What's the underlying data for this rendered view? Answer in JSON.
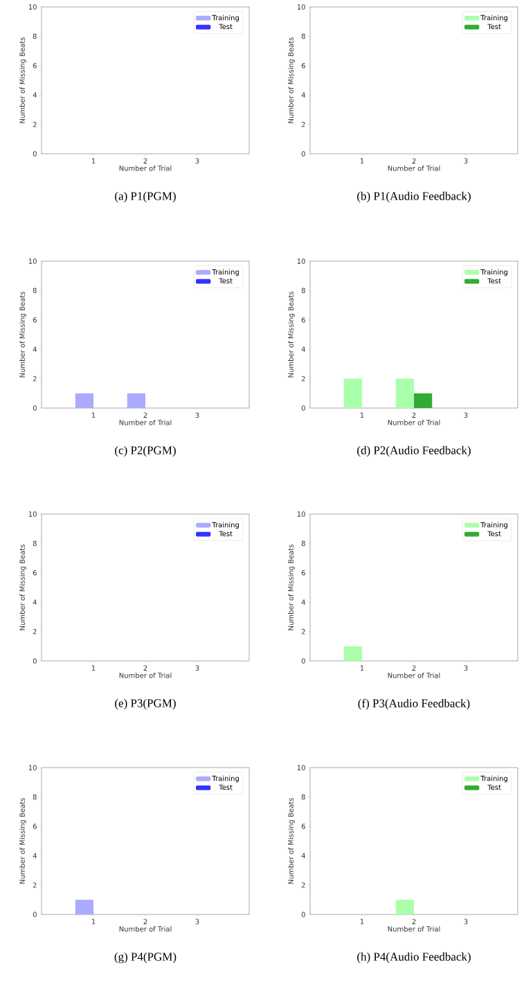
{
  "chart_data": [
    {
      "type": "bar",
      "title": "(a) P1(PGM)",
      "xlabel": "Number of Trial",
      "ylabel": "Number of Missing Beats",
      "x": [
        1,
        2,
        3
      ],
      "xlim": [
        0,
        4
      ],
      "xticks": [
        1,
        2,
        3
      ],
      "ylim": [
        0,
        10
      ],
      "yticks": [
        0,
        2,
        4,
        6,
        8,
        10
      ],
      "legend": "top right",
      "series": [
        {
          "name": "Training",
          "color": "#aaaaff",
          "values": [
            0,
            0,
            0
          ]
        },
        {
          "name": "Test",
          "color": "#3333ff",
          "values": [
            0,
            0,
            0
          ]
        }
      ]
    },
    {
      "type": "bar",
      "title": "(b) P1(Audio Feedback)",
      "xlabel": "Number of Trial",
      "ylabel": "Number of Missing Beats",
      "x": [
        1,
        2,
        3
      ],
      "xlim": [
        0,
        4
      ],
      "xticks": [
        1,
        2,
        3
      ],
      "ylim": [
        0,
        10
      ],
      "yticks": [
        0,
        2,
        4,
        6,
        8,
        10
      ],
      "legend": "top right",
      "series": [
        {
          "name": "Training",
          "color": "#aaffaa",
          "values": [
            0,
            0,
            0
          ]
        },
        {
          "name": "Test",
          "color": "#33aa33",
          "values": [
            0,
            0,
            0
          ]
        }
      ]
    },
    {
      "type": "bar",
      "title": "(c) P2(PGM)",
      "xlabel": "Number of Trial",
      "ylabel": "Number of Missing Beats",
      "x": [
        1,
        2,
        3
      ],
      "xlim": [
        0,
        4
      ],
      "xticks": [
        1,
        2,
        3
      ],
      "ylim": [
        0,
        10
      ],
      "yticks": [
        0,
        2,
        4,
        6,
        8,
        10
      ],
      "legend": "top right",
      "series": [
        {
          "name": "Training",
          "color": "#aaaaff",
          "values": [
            1,
            1,
            0
          ]
        },
        {
          "name": "Test",
          "color": "#3333ff",
          "values": [
            0,
            0,
            0
          ]
        }
      ]
    },
    {
      "type": "bar",
      "title": "(d) P2(Audio Feedback)",
      "xlabel": "Number of Trial",
      "ylabel": "Number of Missing Beats",
      "x": [
        1,
        2,
        3
      ],
      "xlim": [
        0,
        4
      ],
      "xticks": [
        1,
        2,
        3
      ],
      "ylim": [
        0,
        10
      ],
      "yticks": [
        0,
        2,
        4,
        6,
        8,
        10
      ],
      "legend": "top right",
      "series": [
        {
          "name": "Training",
          "color": "#aaffaa",
          "values": [
            2,
            2,
            0
          ]
        },
        {
          "name": "Test",
          "color": "#33aa33",
          "values": [
            0,
            1,
            0
          ]
        }
      ]
    },
    {
      "type": "bar",
      "title": "(e) P3(PGM)",
      "xlabel": "Number of Trial",
      "ylabel": "Number of Missing Beats",
      "x": [
        1,
        2,
        3
      ],
      "xlim": [
        0,
        4
      ],
      "xticks": [
        1,
        2,
        3
      ],
      "ylim": [
        0,
        10
      ],
      "yticks": [
        0,
        2,
        4,
        6,
        8,
        10
      ],
      "legend": "top right",
      "series": [
        {
          "name": "Training",
          "color": "#aaaaff",
          "values": [
            0,
            0,
            0
          ]
        },
        {
          "name": "Test",
          "color": "#3333ff",
          "values": [
            0,
            0,
            0
          ]
        }
      ]
    },
    {
      "type": "bar",
      "title": "(f) P3(Audio Feedback)",
      "xlabel": "Number of Trial",
      "ylabel": "Number of Missing Beats",
      "x": [
        1,
        2,
        3
      ],
      "xlim": [
        0,
        4
      ],
      "xticks": [
        1,
        2,
        3
      ],
      "ylim": [
        0,
        10
      ],
      "yticks": [
        0,
        2,
        4,
        6,
        8,
        10
      ],
      "legend": "top right",
      "series": [
        {
          "name": "Training",
          "color": "#aaffaa",
          "values": [
            1,
            0,
            0
          ]
        },
        {
          "name": "Test",
          "color": "#33aa33",
          "values": [
            0,
            0,
            0
          ]
        }
      ]
    },
    {
      "type": "bar",
      "title": "(g) P4(PGM)",
      "xlabel": "Number of Trial",
      "ylabel": "Number of Missing Beats",
      "x": [
        1,
        2,
        3
      ],
      "xlim": [
        0,
        4
      ],
      "xticks": [
        1,
        2,
        3
      ],
      "ylim": [
        0,
        10
      ],
      "yticks": [
        0,
        2,
        4,
        6,
        8,
        10
      ],
      "legend": "top right",
      "series": [
        {
          "name": "Training",
          "color": "#aaaaff",
          "values": [
            1,
            0,
            0
          ]
        },
        {
          "name": "Test",
          "color": "#3333ff",
          "values": [
            0,
            0,
            0
          ]
        }
      ]
    },
    {
      "type": "bar",
      "title": "(h) P4(Audio Feedback)",
      "xlabel": "Number of Trial",
      "ylabel": "Number of Missing Beats",
      "x": [
        1,
        2,
        3
      ],
      "xlim": [
        0,
        4
      ],
      "xticks": [
        1,
        2,
        3
      ],
      "ylim": [
        0,
        10
      ],
      "yticks": [
        0,
        2,
        4,
        6,
        8,
        10
      ],
      "legend": "top right",
      "series": [
        {
          "name": "Training",
          "color": "#aaffaa",
          "values": [
            0,
            1,
            0
          ]
        },
        {
          "name": "Test",
          "color": "#33aa33",
          "values": [
            0,
            0,
            0
          ]
        }
      ]
    }
  ]
}
